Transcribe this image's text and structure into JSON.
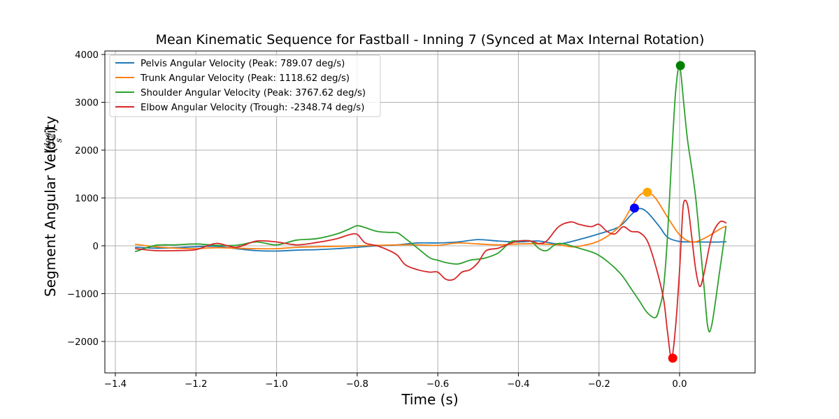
{
  "chart_data": {
    "type": "line",
    "title": "Mean Kinematic Sequence for Fastball - Inning 7 (Synced at Max Internal Rotation)",
    "xlabel": "Time (s)",
    "ylabel": "Segment Angular Velocity",
    "ylabel_unit_num": "deg",
    "ylabel_unit_den": "s",
    "xlim": [
      -1.4,
      1.4
    ],
    "ylim": [
      -2650,
      4080
    ],
    "xticks": [
      -1.4,
      -1.2,
      -1.0,
      -0.8,
      -0.6,
      -0.4,
      -0.2,
      0.0
    ],
    "xtick_labels": [
      "−1.4",
      "−1.2",
      "−1.0",
      "−0.8",
      "−0.6",
      "−0.4",
      "−0.2",
      "0.0"
    ],
    "yticks": [
      -2000,
      -1000,
      0,
      1000,
      2000,
      3000,
      4000
    ],
    "ytick_labels": [
      "−2000",
      "−1000",
      "0",
      "1000",
      "2000",
      "3000",
      "4000"
    ],
    "grid": true,
    "legend_position": "upper-left",
    "series": [
      {
        "name": "Pelvis Angular Velocity (Peak: 789.07 deg/s)",
        "color": "#1f77b4",
        "x": [
          -1.35,
          -1.3,
          -1.25,
          -1.2,
          -1.15,
          -1.1,
          -1.05,
          -1.0,
          -0.95,
          -0.9,
          -0.85,
          -0.8,
          -0.75,
          -0.7,
          -0.65,
          -0.6,
          -0.55,
          -0.5,
          -0.45,
          -0.4,
          -0.35,
          -0.3,
          -0.25,
          -0.2,
          -0.15,
          -0.12,
          -0.1,
          -0.08,
          -0.05,
          -0.03,
          0.0,
          0.05,
          0.1,
          0.115
        ],
        "y": [
          -30,
          -50,
          -40,
          -20,
          -10,
          -60,
          -100,
          -110,
          -90,
          -80,
          -60,
          -30,
          0,
          20,
          60,
          60,
          80,
          130,
          100,
          80,
          100,
          40,
          130,
          250,
          400,
          650,
          780,
          700,
          400,
          180,
          90,
          80,
          80,
          85
        ],
        "peak": {
          "x": -0.112,
          "y": 789.07
        }
      },
      {
        "name": "Trunk Angular Velocity (Peak: 1118.62 deg/s)",
        "color": "#ff7f0e",
        "x": [
          -1.35,
          -1.3,
          -1.25,
          -1.2,
          -1.15,
          -1.1,
          -1.05,
          -1.0,
          -0.95,
          -0.9,
          -0.85,
          -0.8,
          -0.75,
          -0.7,
          -0.65,
          -0.6,
          -0.55,
          -0.5,
          -0.45,
          -0.4,
          -0.35,
          -0.3,
          -0.27,
          -0.25,
          -0.2,
          -0.15,
          -0.12,
          -0.1,
          -0.08,
          -0.06,
          -0.03,
          0.0,
          0.03,
          0.06,
          0.1,
          0.115
        ],
        "y": [
          30,
          -20,
          -50,
          -60,
          -40,
          -50,
          -60,
          -60,
          -30,
          -20,
          -10,
          0,
          10,
          20,
          20,
          10,
          60,
          40,
          20,
          40,
          40,
          20,
          -20,
          -10,
          100,
          400,
          800,
          1050,
          1118,
          1000,
          600,
          230,
          80,
          150,
          350,
          410
        ],
        "peak": {
          "x": -0.08,
          "y": 1118.62
        }
      },
      {
        "name": "Shoulder Angular Velocity (Peak: 3767.62 deg/s)",
        "color": "#2ca02c",
        "x": [
          -1.35,
          -1.3,
          -1.25,
          -1.2,
          -1.15,
          -1.1,
          -1.05,
          -1.0,
          -0.95,
          -0.9,
          -0.85,
          -0.82,
          -0.8,
          -0.78,
          -0.75,
          -0.72,
          -0.7,
          -0.68,
          -0.65,
          -0.62,
          -0.6,
          -0.58,
          -0.55,
          -0.52,
          -0.5,
          -0.48,
          -0.45,
          -0.42,
          -0.4,
          -0.37,
          -0.35,
          -0.33,
          -0.3,
          -0.25,
          -0.2,
          -0.15,
          -0.12,
          -0.1,
          -0.08,
          -0.06,
          -0.05,
          -0.04,
          -0.03,
          -0.02,
          -0.01,
          0.0,
          0.01,
          0.02,
          0.04,
          0.06,
          0.07,
          0.08,
          0.1,
          0.115
        ],
        "y": [
          -120,
          10,
          20,
          40,
          10,
          10,
          80,
          20,
          120,
          150,
          250,
          350,
          420,
          380,
          300,
          280,
          270,
          150,
          -50,
          -250,
          -300,
          -350,
          -380,
          -300,
          -280,
          -250,
          -150,
          80,
          100,
          100,
          -50,
          -100,
          50,
          -50,
          -200,
          -550,
          -900,
          -1150,
          -1400,
          -1500,
          -1300,
          -900,
          200,
          1800,
          3200,
          3767,
          3000,
          2200,
          1000,
          -800,
          -1700,
          -1650,
          -500,
          400
        ],
        "peak": {
          "x": 0.002,
          "y": 3767.62
        }
      },
      {
        "name": "Elbow Angular Velocity (Trough: -2348.74 deg/s)",
        "color": "#d62728",
        "x": [
          -1.35,
          -1.3,
          -1.25,
          -1.2,
          -1.15,
          -1.1,
          -1.05,
          -1.0,
          -0.95,
          -0.9,
          -0.85,
          -0.82,
          -0.8,
          -0.78,
          -0.75,
          -0.72,
          -0.7,
          -0.68,
          -0.65,
          -0.62,
          -0.6,
          -0.58,
          -0.56,
          -0.54,
          -0.52,
          -0.5,
          -0.48,
          -0.45,
          -0.42,
          -0.4,
          -0.37,
          -0.35,
          -0.33,
          -0.3,
          -0.27,
          -0.25,
          -0.22,
          -0.2,
          -0.18,
          -0.16,
          -0.14,
          -0.12,
          -0.1,
          -0.08,
          -0.06,
          -0.04,
          -0.03,
          -0.02,
          -0.01,
          0.0,
          0.005,
          0.01,
          0.02,
          0.03,
          0.04,
          0.05,
          0.06,
          0.08,
          0.1,
          0.115
        ],
        "y": [
          -60,
          -100,
          -100,
          -80,
          50,
          -30,
          100,
          80,
          20,
          70,
          150,
          230,
          240,
          60,
          0,
          -100,
          -200,
          -400,
          -500,
          -550,
          -550,
          -700,
          -700,
          -550,
          -500,
          -350,
          -100,
          -50,
          50,
          100,
          100,
          50,
          100,
          400,
          500,
          450,
          400,
          450,
          300,
          250,
          400,
          300,
          280,
          100,
          -400,
          -1100,
          -1800,
          -2348,
          -1700,
          -500,
          300,
          900,
          850,
          200,
          -500,
          -850,
          -600,
          200,
          500,
          480
        ],
        "peak": {
          "x": -0.017,
          "y": -2348.74
        }
      }
    ]
  }
}
